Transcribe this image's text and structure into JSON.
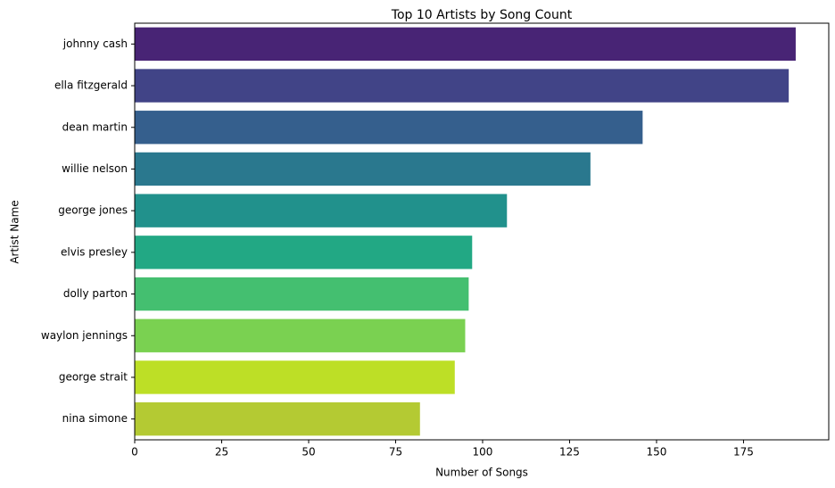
{
  "chart_data": {
    "type": "barh",
    "title": "Top 10 Artists by Song Count",
    "x_label": "Number of Songs",
    "y_label": "Artist Name",
    "categories": [
      "johnny cash",
      "ella fitzgerald",
      "dean martin",
      "willie nelson",
      "george jones",
      "elvis presley",
      "dolly parton",
      "waylon jennings",
      "george strait",
      "nina simone"
    ],
    "values": [
      190,
      188,
      146,
      131,
      107,
      97,
      96,
      95,
      92,
      82
    ],
    "colors": [
      "#482475",
      "#414487",
      "#355f8d",
      "#2a788e",
      "#21918c",
      "#22a884",
      "#44bf70",
      "#7ad151",
      "#bddf26",
      "#b4ca33"
    ],
    "xlim": [
      0,
      199.5
    ],
    "xticks": [
      0,
      25,
      50,
      75,
      100,
      125,
      150,
      175
    ],
    "grid": false
  }
}
